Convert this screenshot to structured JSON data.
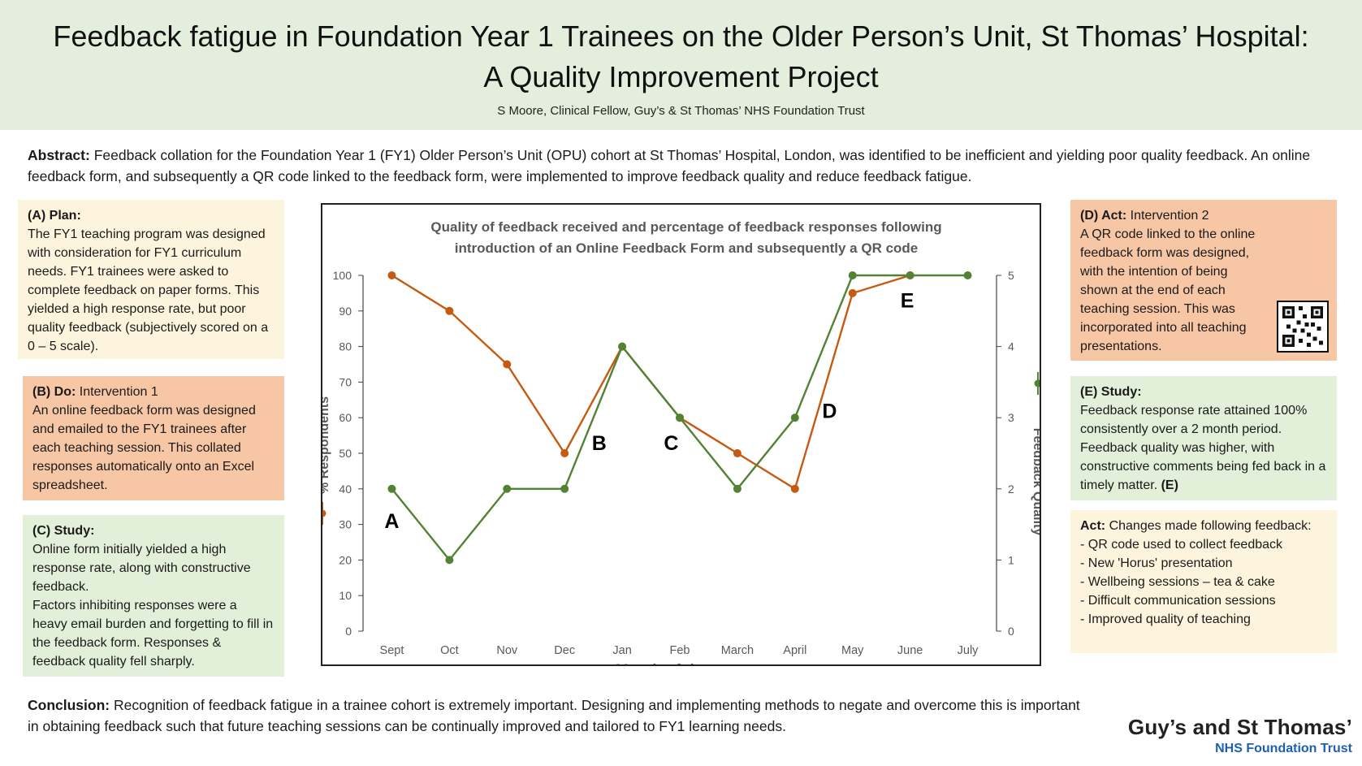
{
  "header": {
    "title_line1": "Feedback fatigue in Foundation Year 1 Trainees on the Older Person’s Unit, St Thomas’ Hospital:",
    "title_line2": "A Quality Improvement Project",
    "authors": "S Moore, Clinical Fellow, Guy’s & St Thomas’ NHS Foundation Trust"
  },
  "abstract": {
    "label": "Abstract:",
    "text": "Feedback collation for the Foundation Year 1 (FY1) Older Person’s Unit (OPU) cohort at St Thomas’ Hospital, London, was identified to be inefficient and yielding poor quality feedback.  An online feedback form, and subsequently a QR code linked to the feedback form, were implemented to improve feedback quality and reduce feedback fatigue."
  },
  "plan": {
    "heading": "(A) Plan:",
    "text": "The FY1 teaching program was designed with consideration for FY1 curriculum needs. FY1 trainees were asked to complete feedback on paper forms.  This yielded a high response rate, but poor quality feedback (subjectively scored on a 0 – 5 scale)."
  },
  "do": {
    "heading": "(B) Do:",
    "sub": "Intervention 1",
    "text": "An online feedback form was designed and emailed to the FY1 trainees after each teaching session. This collated responses automatically onto an Excel spreadsheet."
  },
  "study_c": {
    "heading": "(C) Study:",
    "text1": "Online form initially yielded a high response rate, along with constructive feedback.",
    "text2": "Factors inhibiting responses were a heavy email burden and forgetting to fill in the feedback form. Responses & feedback quality fell sharply."
  },
  "act_d": {
    "heading": "(D) Act:",
    "sub": "Intervention 2",
    "text": "A QR code linked to the online feedback form was designed, with the intention of being shown at the end of each teaching session.  This was incorporated into all teaching presentations."
  },
  "study_e": {
    "heading": "(E) Study:",
    "text": "Feedback response rate attained 100% consistently over a 2 month period. Feedback quality was higher, with constructive comments being fed back in a timely matter.",
    "tag": "(E)"
  },
  "act_changes": {
    "heading": "Act:",
    "intro": "Changes made following feedback:",
    "items": [
      "- QR code used to collect feedback",
      "- New 'Horus' presentation",
      "- Wellbeing sessions – tea & cake",
      "- Difficult communication sessions",
      "-  Improved quality of teaching"
    ]
  },
  "conclusion": {
    "label": "Conclusion:",
    "text": "Recognition of feedback fatigue in a trainee cohort is extremely important. Designing and implementing methods to negate and overcome this is important in obtaining feedback such that future teaching sessions can be continually improved and tailored to FY1 learning needs."
  },
  "logo": {
    "line1": "Guy’s and St Thomas’",
    "line2": "NHS Foundation Trust"
  },
  "chart_data": {
    "type": "line",
    "title_line1": "Quality of feedback received and percentage of feedback responses following",
    "title_line2": "introduction of an Online Feedback Form and subsequently a QR code",
    "xlabel": "Month of the year",
    "ylabel_left": "% Respondents",
    "ylabel_right": "Feedback Quality",
    "categories": [
      "Sept",
      "Oct",
      "Nov",
      "Dec",
      "Jan",
      "Feb",
      "March",
      "April",
      "May",
      "June",
      "July"
    ],
    "ylim_left": [
      0,
      100
    ],
    "ylim_right": [
      0,
      5
    ],
    "yticks_left": [
      "0",
      "10",
      "20",
      "30",
      "40",
      "50",
      "60",
      "70",
      "80",
      "90",
      "100"
    ],
    "yticks_right": [
      "0",
      "1",
      "2",
      "3",
      "4",
      "5"
    ],
    "grid": false,
    "series": [
      {
        "color": "#c55a11",
        "axis": "left",
        "values": [
          100,
          90,
          75,
          50,
          80,
          60,
          50,
          40,
          95,
          100,
          null
        ]
      },
      {
        "color": "#548235",
        "axis": "right",
        "values": [
          2,
          1,
          2,
          2,
          4,
          3,
          2,
          3,
          5,
          5,
          5
        ]
      }
    ],
    "annotations": [
      {
        "label": "A",
        "x": 0,
        "y": 31
      },
      {
        "label": "B",
        "x": 3.6,
        "y": 53
      },
      {
        "label": "C",
        "x": 4.85,
        "y": 53
      },
      {
        "label": "D",
        "x": 7.6,
        "y": 62
      },
      {
        "label": "E",
        "x": 8.95,
        "y": 93
      }
    ]
  }
}
